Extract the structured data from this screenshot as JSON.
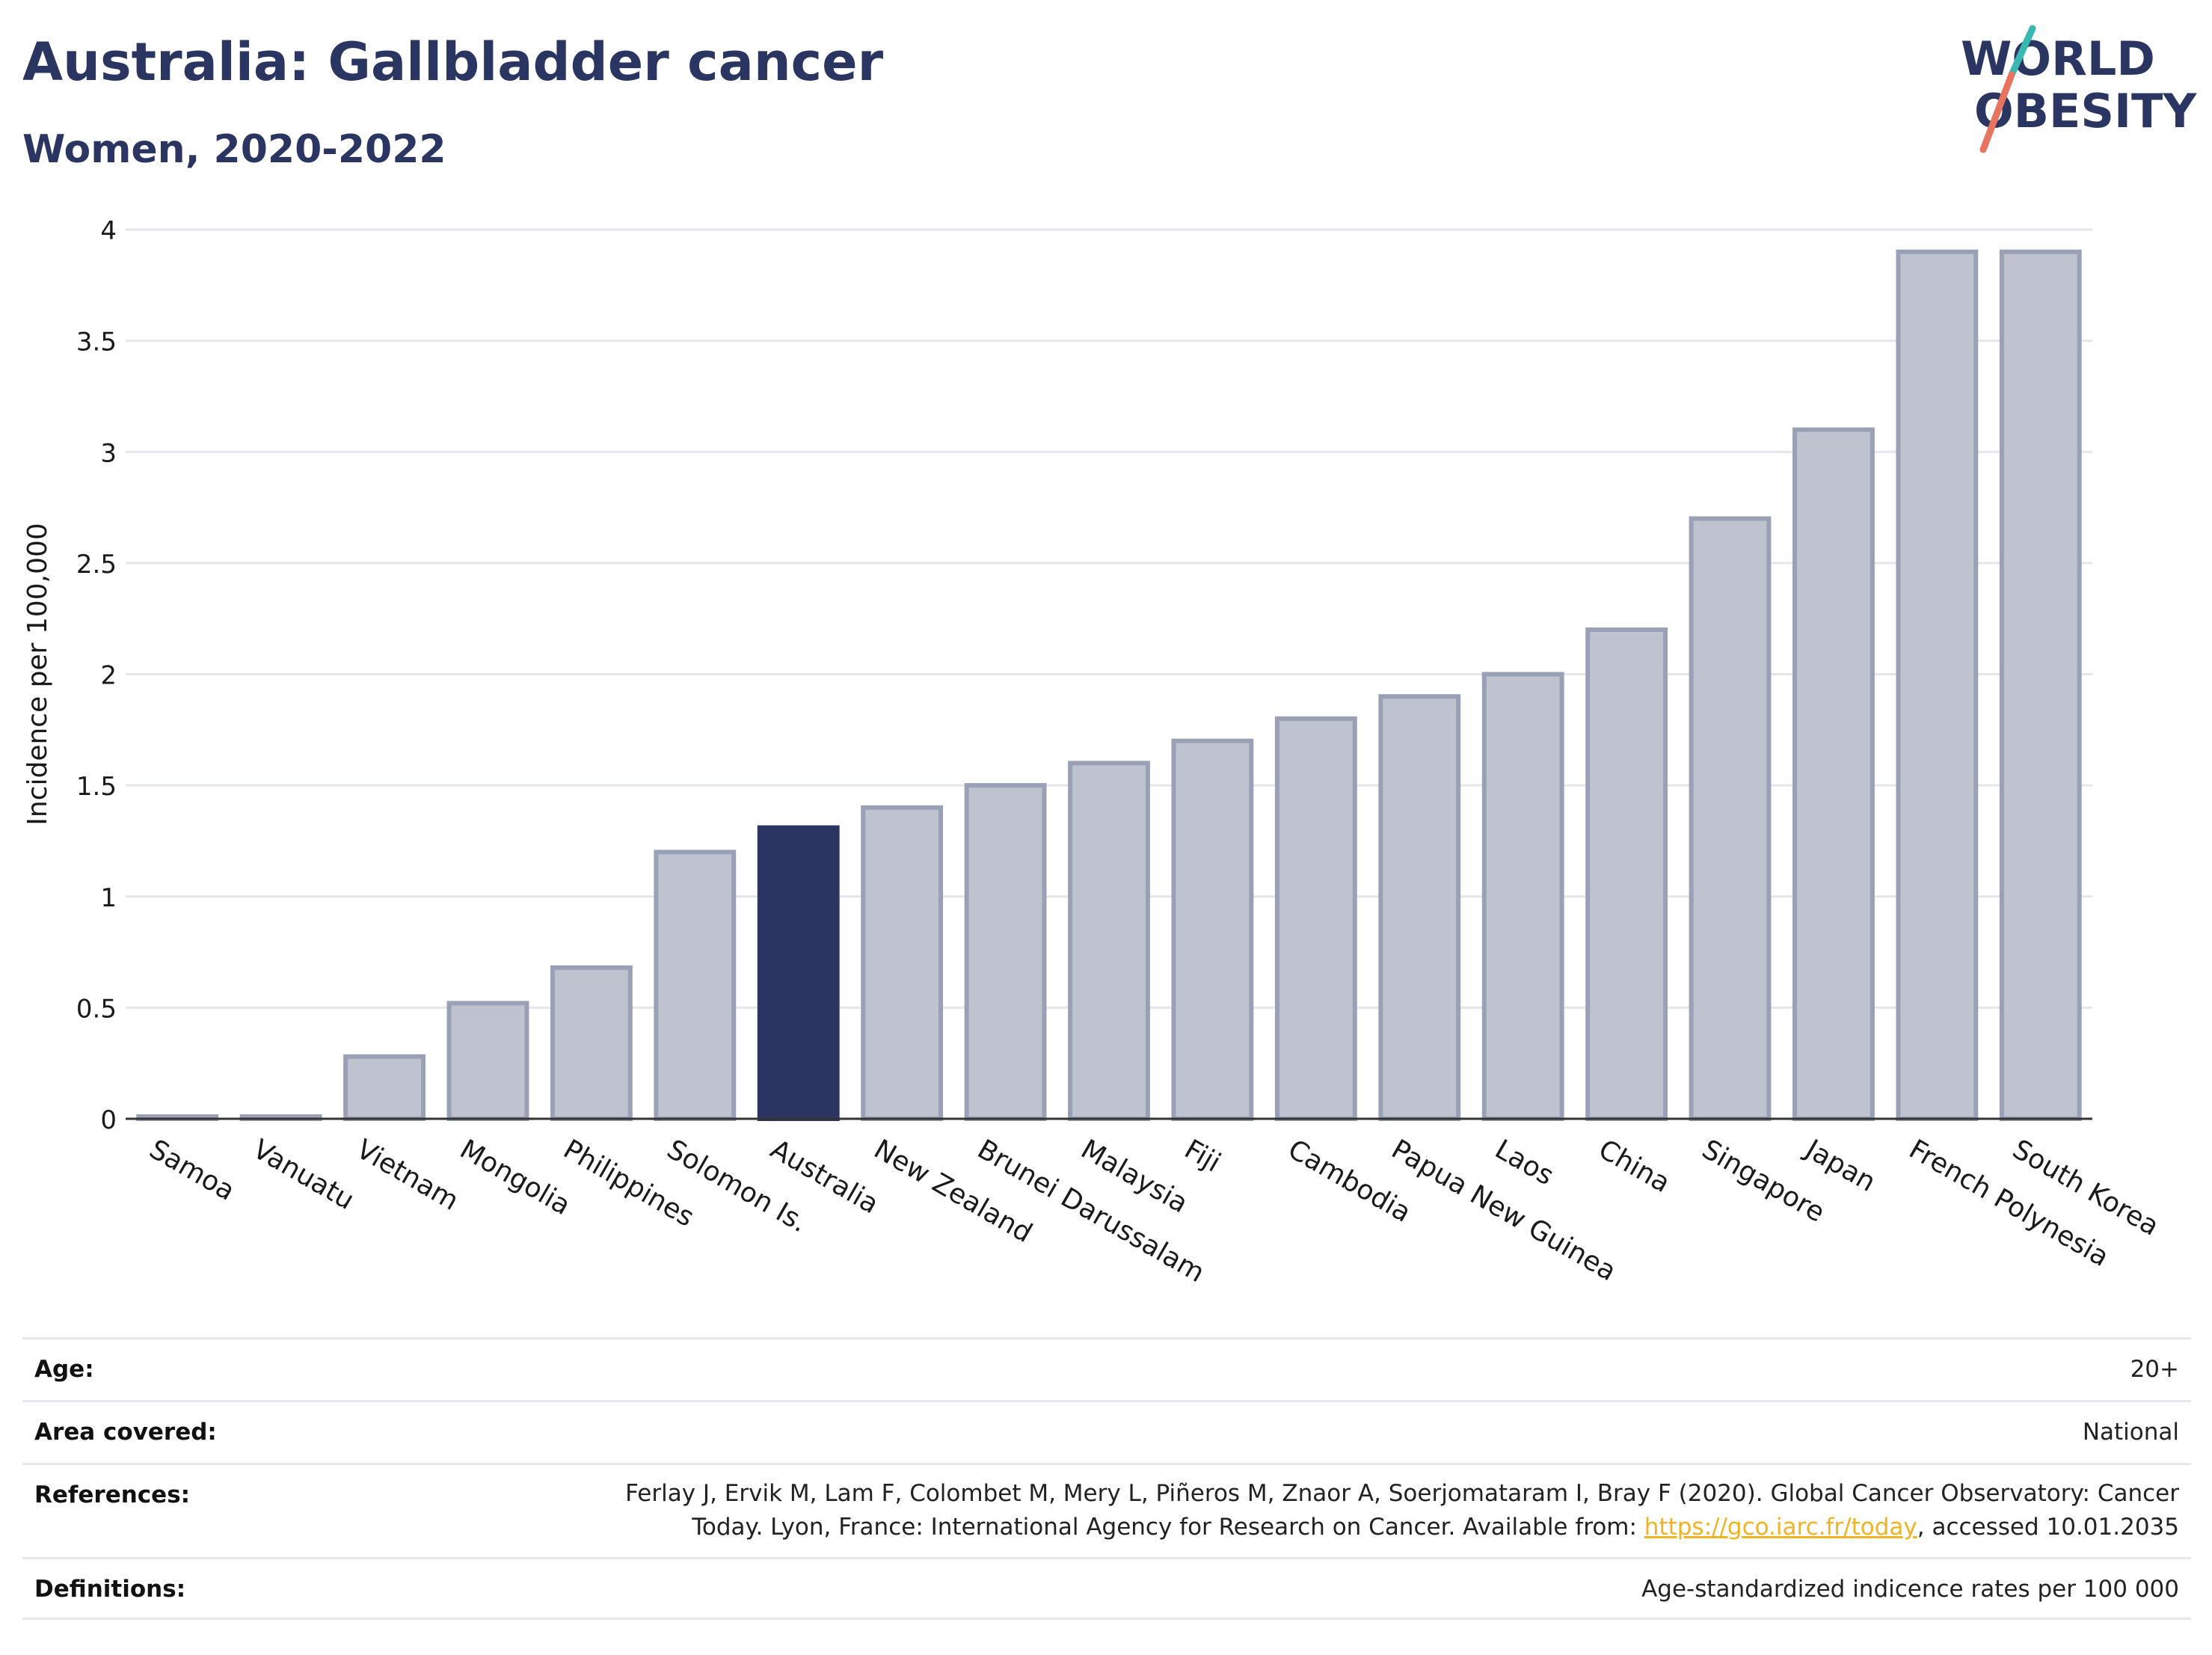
{
  "header": {
    "title": "Australia: Gallbladder cancer",
    "subtitle": "Women, 2020-2022"
  },
  "logo": {
    "line1": "WORLD",
    "line2": "OBESITY",
    "text_color": "#2b3561",
    "slash_colors": [
      "#39b8b1",
      "#e8735f"
    ]
  },
  "chart_data": {
    "type": "bar",
    "ylabel": "Incidence per 100,000",
    "ylim": [
      0,
      4
    ],
    "yticks": [
      "0",
      "0.5",
      "1",
      "1.5",
      "2",
      "2.5",
      "3",
      "3.5",
      "4"
    ],
    "grid": true,
    "highlight": "Australia",
    "colors": {
      "bar": "#bfc3d0",
      "bar_stroke": "#9aa0b5",
      "highlight": "#2b3561"
    },
    "categories": [
      "Samoa",
      "Vanuatu",
      "Vietnam",
      "Mongolia",
      "Philippines",
      "Solomon Is.",
      "Australia",
      "New Zealand",
      "Brunei Darussalam",
      "Malaysia",
      "Fiji",
      "Cambodia",
      "Papua New Guinea",
      "Laos",
      "China",
      "Singapore",
      "Japan",
      "French Polynesia",
      "South Korea"
    ],
    "values": [
      0.0,
      0.0,
      0.28,
      0.52,
      0.68,
      1.2,
      1.31,
      1.4,
      1.5,
      1.6,
      1.7,
      1.8,
      1.9,
      2.0,
      2.2,
      2.7,
      3.1,
      3.9,
      3.9
    ]
  },
  "meta": {
    "age_label": "Age:",
    "age_value": "20+",
    "area_label": "Area covered:",
    "area_value": "National",
    "references_label": "References:",
    "references_line1": "Ferlay J, Ervik M, Lam F, Colombet M, Mery L, Piñeros M, Znaor A, Soerjomataram I, Bray F (2020). Global Cancer Observatory: Cancer",
    "references_line2_pre": "Today. Lyon, France: International Agency for Research on Cancer. Available from: ",
    "references_link": "https://gco.iarc.fr/today",
    "references_line2_post": ", accessed 10.01.2035",
    "definitions_label": "Definitions:",
    "definitions_value": "Age-standardized indicence rates per 100 000"
  }
}
